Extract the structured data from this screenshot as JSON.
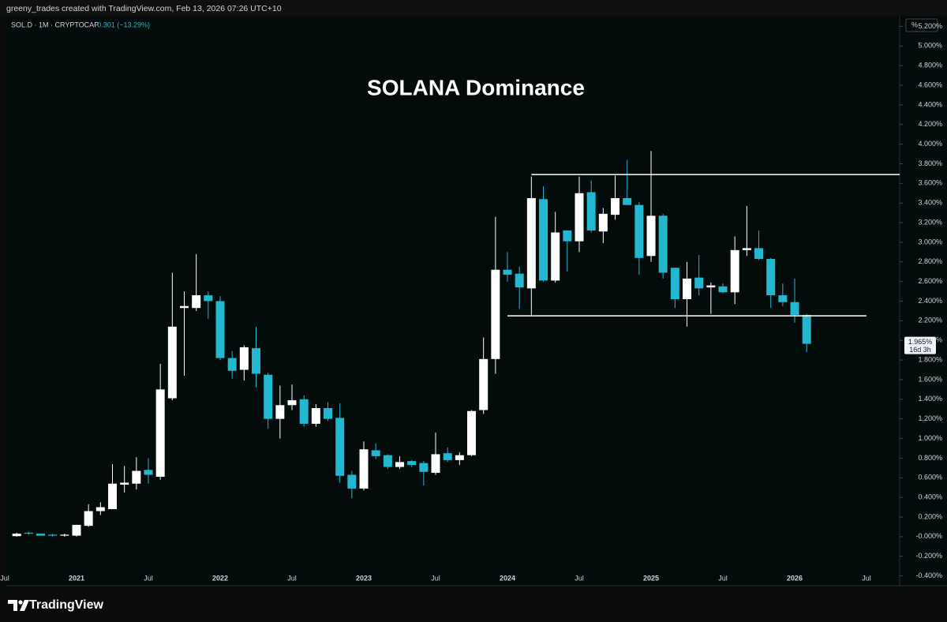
{
  "header": {
    "credit": "greeny_trades created with TradingView.com, Feb 13, 2026 07:26 UTC+10",
    "symbol": "SOL.D · 1M · CRYPTOCAP",
    "change": "−0.301 (−13.29%)",
    "scale_button": "%"
  },
  "chart_data": {
    "type": "candlestick",
    "title": "SOLANA Dominance",
    "up_color": "#ffffff",
    "down_color": "#22b8cf",
    "grid": false,
    "categories": [
      "Jul",
      null,
      null,
      null,
      null,
      null,
      "2021",
      null,
      null,
      null,
      null,
      null,
      "Jul",
      null,
      null,
      null,
      null,
      null,
      "2022",
      null,
      null,
      null,
      null,
      null,
      "Jul",
      null,
      null,
      null,
      null,
      null,
      "2023",
      null,
      null,
      null,
      null,
      null,
      "Jul",
      null,
      null,
      null,
      null,
      null,
      "2024",
      null,
      null,
      null,
      null,
      null,
      "Jul",
      null,
      null,
      null,
      null,
      null,
      "2025",
      null,
      null,
      null,
      null,
      null,
      "Jul",
      null,
      null,
      null,
      null,
      null,
      "2026",
      null,
      null,
      null,
      null,
      null,
      "Jul"
    ],
    "open": [
      null,
      0.005,
      0.04,
      0.03,
      0.02,
      0.01,
      0.01,
      0.11,
      0.26,
      0.28,
      0.53,
      0.54,
      0.68,
      0.61,
      1.41,
      2.33,
      2.33,
      2.46,
      2.4,
      1.82,
      1.7,
      1.92,
      1.65,
      1.2,
      1.34,
      1.4,
      1.15,
      1.31,
      1.21,
      0.63,
      0.49,
      0.88,
      0.83,
      0.71,
      0.77,
      0.75,
      0.65,
      0.85,
      0.78,
      0.83,
      1.29,
      1.81,
      2.72,
      2.68,
      2.53,
      3.44,
      2.61,
      3.12,
      3.01,
      3.51,
      3.11,
      3.28,
      3.45,
      3.38,
      2.86,
      3.27,
      2.74,
      2.42,
      2.64,
      2.54,
      2.55,
      2.49,
      2.92,
      2.94,
      2.83,
      2.46,
      2.39,
      2.26,
      null,
      null,
      null,
      null,
      null
    ],
    "high": [
      null,
      0.04,
      0.05,
      0.03,
      0.03,
      0.03,
      0.12,
      0.33,
      0.35,
      0.74,
      0.72,
      0.81,
      0.8,
      1.76,
      2.69,
      2.5,
      2.88,
      2.5,
      2.45,
      1.89,
      1.95,
      2.14,
      1.67,
      1.54,
      1.55,
      1.44,
      1.35,
      1.37,
      1.36,
      0.67,
      0.97,
      0.95,
      0.84,
      0.82,
      0.78,
      0.77,
      1.06,
      0.91,
      0.86,
      1.29,
      2.03,
      3.26,
      2.9,
      2.75,
      3.67,
      3.57,
      3.31,
      3.12,
      3.67,
      3.63,
      3.35,
      3.68,
      3.84,
      3.41,
      3.93,
      3.29,
      2.74,
      2.8,
      2.87,
      2.59,
      2.58,
      3.06,
      3.37,
      3.12,
      2.84,
      2.58,
      2.63,
      2.27,
      null,
      null,
      null,
      null,
      null
    ],
    "low": [
      null,
      0.0,
      0.02,
      0.01,
      0.0,
      0.0,
      0.0,
      0.1,
      0.22,
      0.28,
      0.45,
      0.48,
      0.54,
      0.58,
      1.39,
      1.64,
      2.3,
      2.22,
      1.8,
      1.61,
      1.59,
      1.52,
      1.1,
      1.0,
      1.29,
      1.12,
      1.12,
      1.18,
      0.55,
      0.39,
      0.47,
      0.79,
      0.69,
      0.69,
      0.71,
      0.52,
      0.63,
      0.76,
      0.73,
      0.82,
      1.25,
      1.66,
      2.6,
      2.32,
      2.25,
      2.6,
      2.59,
      2.7,
      2.9,
      3.1,
      2.99,
      3.23,
      3.38,
      2.67,
      2.8,
      2.63,
      2.33,
      2.14,
      2.46,
      2.27,
      2.48,
      2.37,
      2.86,
      2.82,
      2.33,
      2.35,
      2.18,
      1.88,
      null,
      null,
      null,
      null,
      null
    ],
    "close": [
      null,
      0.03,
      0.03,
      0.01,
      0.01,
      0.02,
      0.12,
      0.26,
      0.3,
      0.54,
      0.55,
      0.67,
      0.63,
      1.5,
      2.14,
      2.35,
      2.46,
      2.4,
      1.82,
      1.69,
      1.93,
      1.66,
      1.2,
      1.34,
      1.39,
      1.15,
      1.31,
      1.2,
      0.62,
      0.49,
      0.89,
      0.82,
      0.71,
      0.76,
      0.73,
      0.66,
      0.84,
      0.78,
      0.83,
      1.28,
      1.81,
      2.72,
      2.67,
      2.54,
      3.45,
      2.61,
      3.1,
      3.01,
      3.5,
      3.12,
      3.29,
      3.45,
      3.38,
      2.84,
      3.27,
      2.69,
      2.42,
      2.63,
      2.53,
      2.56,
      2.49,
      2.92,
      2.94,
      2.83,
      2.46,
      2.39,
      2.26,
      1.965,
      null,
      null,
      null,
      null,
      null
    ],
    "ylim": [
      -0.5,
      5.3
    ],
    "yticks": [
      {
        "value": -0.4,
        "label": "-0.400%"
      },
      {
        "value": -0.2,
        "label": "-0.200%"
      },
      {
        "value": 0,
        "label": "-0.000%"
      },
      {
        "value": 0.2,
        "label": "0.200%"
      },
      {
        "value": 0.4,
        "label": "0.400%"
      },
      {
        "value": 0.6,
        "label": "0.600%"
      },
      {
        "value": 0.8,
        "label": "0.800%"
      },
      {
        "value": 1.0,
        "label": "1.000%"
      },
      {
        "value": 1.2,
        "label": "1.200%"
      },
      {
        "value": 1.4,
        "label": "1.400%"
      },
      {
        "value": 1.6,
        "label": "1.600%"
      },
      {
        "value": 1.8,
        "label": "1.800%"
      },
      {
        "value": 2.0,
        "label": "2.000%"
      },
      {
        "value": 2.2,
        "label": "2.200%"
      },
      {
        "value": 2.4,
        "label": "2.400%"
      },
      {
        "value": 2.6,
        "label": "2.600%"
      },
      {
        "value": 2.8,
        "label": "2.800%"
      },
      {
        "value": 3.0,
        "label": "3.000%"
      },
      {
        "value": 3.2,
        "label": "3.200%"
      },
      {
        "value": 3.4,
        "label": "3.400%"
      },
      {
        "value": 3.6,
        "label": "3.600%"
      },
      {
        "value": 3.8,
        "label": "3.800%"
      },
      {
        "value": 4.0,
        "label": "4.000%"
      },
      {
        "value": 4.2,
        "label": "4.200%"
      },
      {
        "value": 4.4,
        "label": "4.400%"
      },
      {
        "value": 4.6,
        "label": "4.600%"
      },
      {
        "value": 4.8,
        "label": "4.800%"
      },
      {
        "value": 5.0,
        "label": "5.000%"
      },
      {
        "value": 5.2,
        "label": "5.200%"
      }
    ],
    "hlines": [
      {
        "value": 3.69,
        "x_start": 44,
        "x_end": 75
      },
      {
        "value": 2.25,
        "x_start": 42,
        "x_end": 72
      }
    ],
    "last_price": {
      "value": 1.965,
      "label": "1.965%"
    },
    "countdown": "16d 3h"
  },
  "footer": {
    "brand": "TradingView"
  }
}
